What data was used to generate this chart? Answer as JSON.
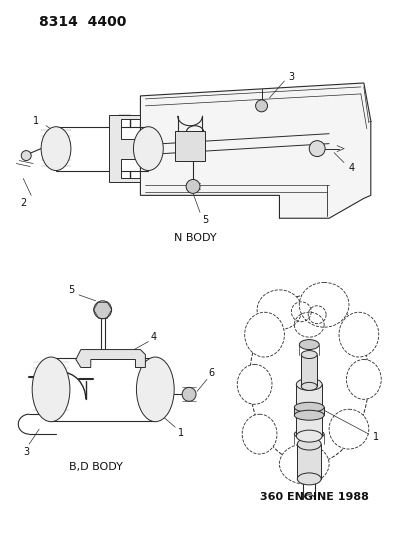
{
  "title": "8314 4400",
  "background_color": "#ffffff",
  "fig_width": 3.99,
  "fig_height": 5.33,
  "dpi": 100,
  "line_color": "#2a2a2a",
  "text_color": "#111111",
  "number_fontsize": 7,
  "label_fontsize": 8,
  "title_fontsize": 10,
  "title_fontweight": "bold",
  "label_n_body": "N BODY",
  "label_bd_body": "B,D BODY",
  "label_360": "360 ENGINE 1988"
}
